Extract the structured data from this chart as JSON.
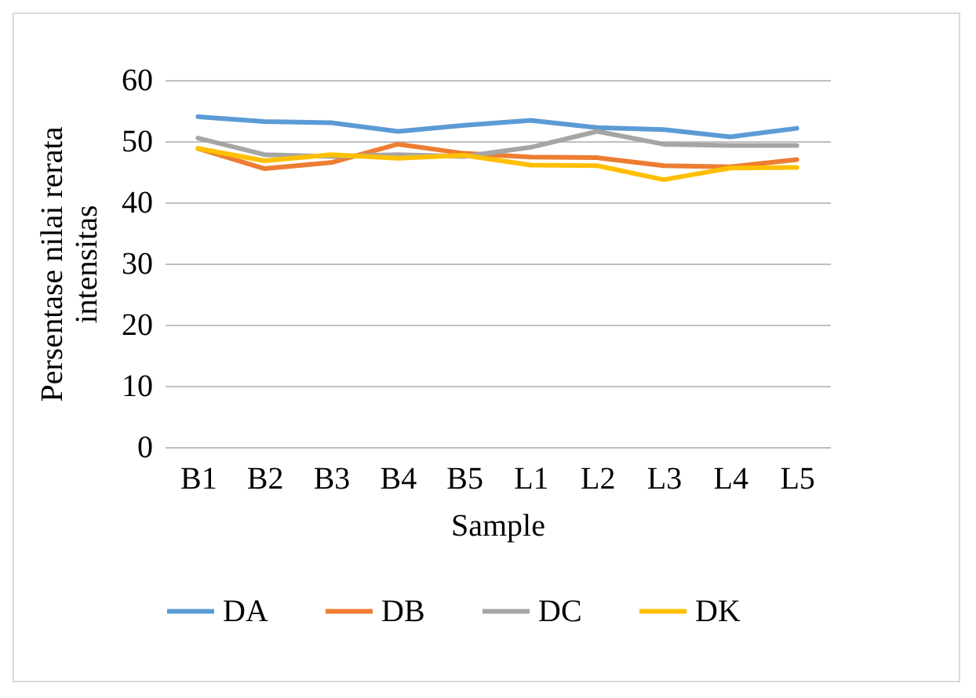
{
  "chart_data": {
    "type": "line",
    "xlabel": "Sample",
    "ylabel": "Persentase nilai rerata intensitas",
    "categories": [
      "B1",
      "B2",
      "B3",
      "B4",
      "B5",
      "L1",
      "L2",
      "L3",
      "L4",
      "L5"
    ],
    "series": [
      {
        "name": "DA",
        "color": "#5b9bd5",
        "values": [
          54,
          53.2,
          53,
          51.6,
          52.6,
          53.4,
          52.2,
          51.9,
          50.7,
          52.1
        ]
      },
      {
        "name": "DB",
        "color": "#ed7d31",
        "values": [
          48.8,
          45.5,
          46.5,
          49.5,
          48,
          47.4,
          47.3,
          46,
          45.8,
          47
        ]
      },
      {
        "name": "DC",
        "color": "#a5a5a5",
        "values": [
          50.5,
          47.8,
          47.5,
          47.8,
          47.5,
          49,
          51.6,
          49.5,
          49.3,
          49.3
        ]
      },
      {
        "name": "DK",
        "color": "#ffc000",
        "values": [
          48.8,
          46.8,
          47.8,
          47.2,
          47.7,
          46.1,
          46,
          43.7,
          45.6,
          45.7
        ]
      }
    ],
    "ylim": [
      0,
      60
    ],
    "yticks": [
      0,
      10,
      20,
      30,
      40,
      50,
      60
    ],
    "grid": "y",
    "legend": "bottom",
    "marker": "none",
    "line_style": "solid"
  }
}
